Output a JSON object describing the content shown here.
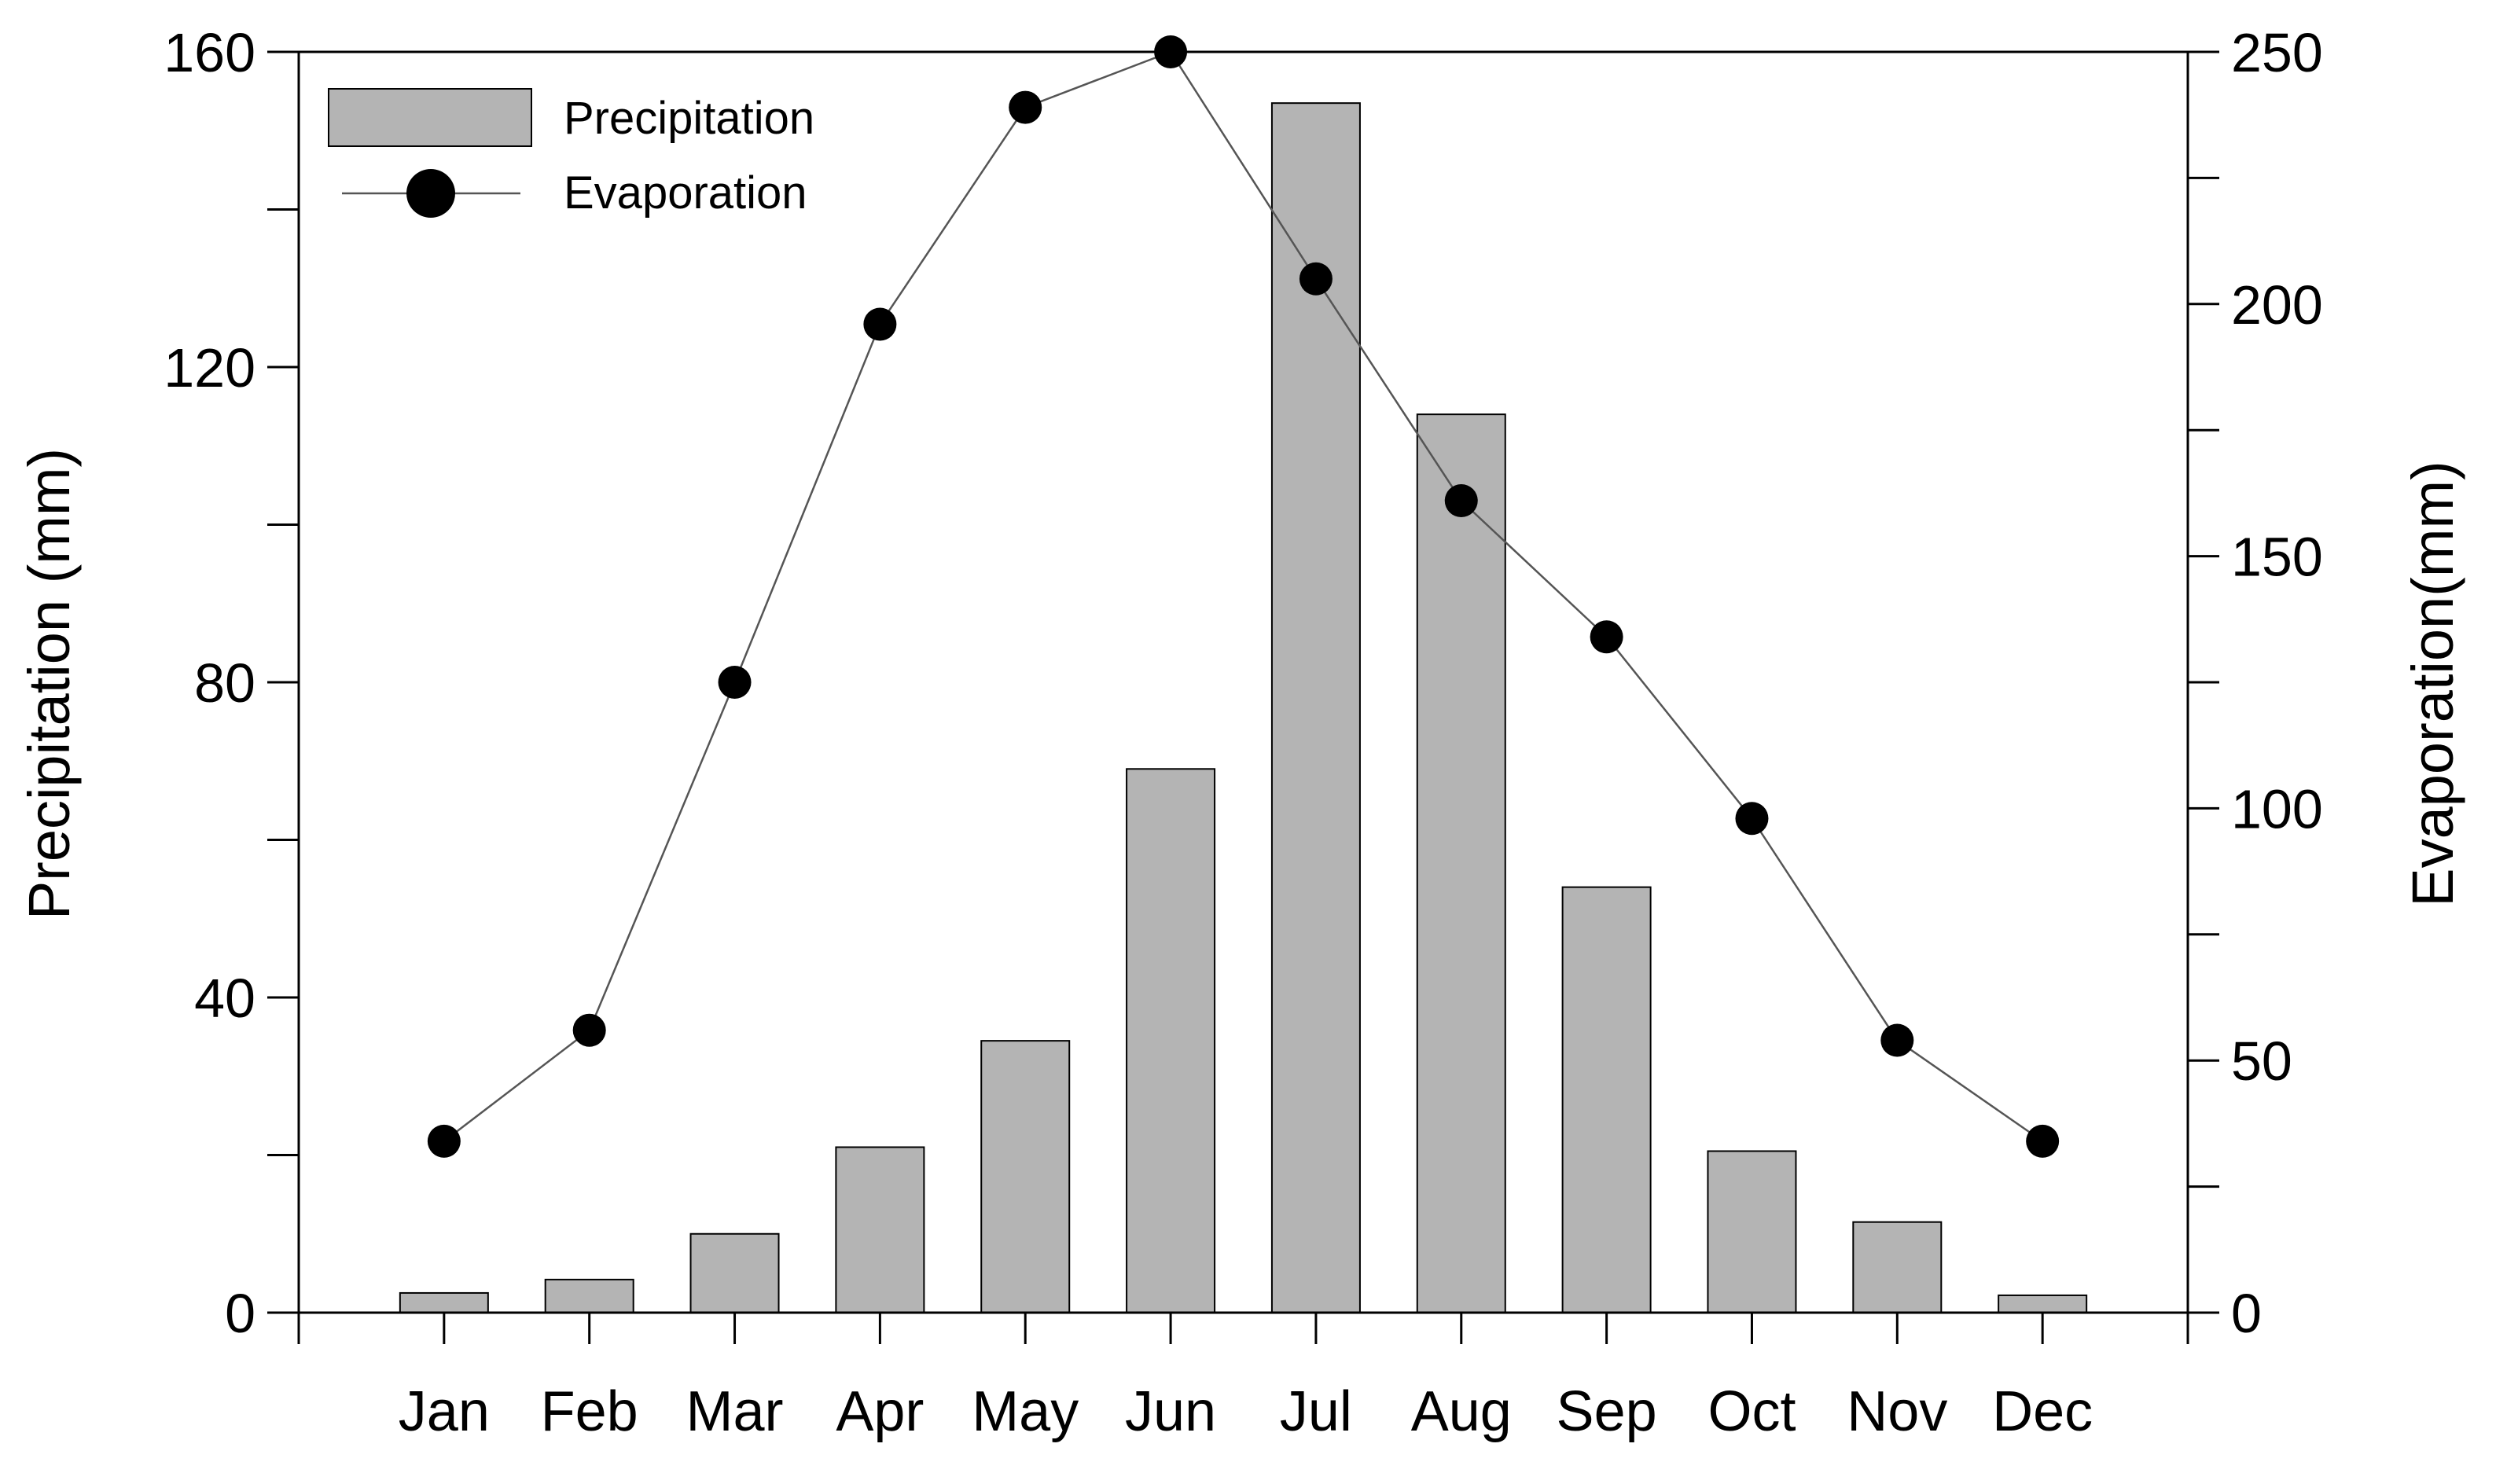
{
  "chart_data": {
    "type": "bar",
    "title": "",
    "categories": [
      "Jan",
      "Feb",
      "Mar",
      "Apr",
      "May",
      "Jun",
      "Jul",
      "Aug",
      "Sep",
      "Oct",
      "Nov",
      "Dec"
    ],
    "series": [
      {
        "name": "Precipitation",
        "type": "bar",
        "axis": "left",
        "values": [
          2.5,
          4.2,
          10,
          21,
          34.5,
          69,
          153.5,
          114,
          54,
          20.5,
          11.5,
          2.2
        ]
      },
      {
        "name": "Evaporation",
        "type": "line",
        "axis": "right",
        "values": [
          34,
          56,
          125,
          196,
          239,
          250,
          205,
          161,
          134,
          98,
          54,
          34
        ]
      }
    ],
    "ylabel": "Precipitation (mm)",
    "ylim": [
      0,
      160
    ],
    "yticks": [
      "0",
      "40",
      "80",
      "120",
      "160"
    ],
    "y2label": "Evaporation(mm)",
    "y2lim": [
      0,
      250
    ],
    "y2ticks": [
      "0",
      "50",
      "100",
      "150",
      "200",
      "250"
    ],
    "xlabel": "",
    "grid": false,
    "legend_position": "top-left",
    "colors": {
      "bar_fill": "#b4b4b4",
      "bar_stroke": "#000000",
      "line": "#555555",
      "marker": "#000000"
    }
  }
}
